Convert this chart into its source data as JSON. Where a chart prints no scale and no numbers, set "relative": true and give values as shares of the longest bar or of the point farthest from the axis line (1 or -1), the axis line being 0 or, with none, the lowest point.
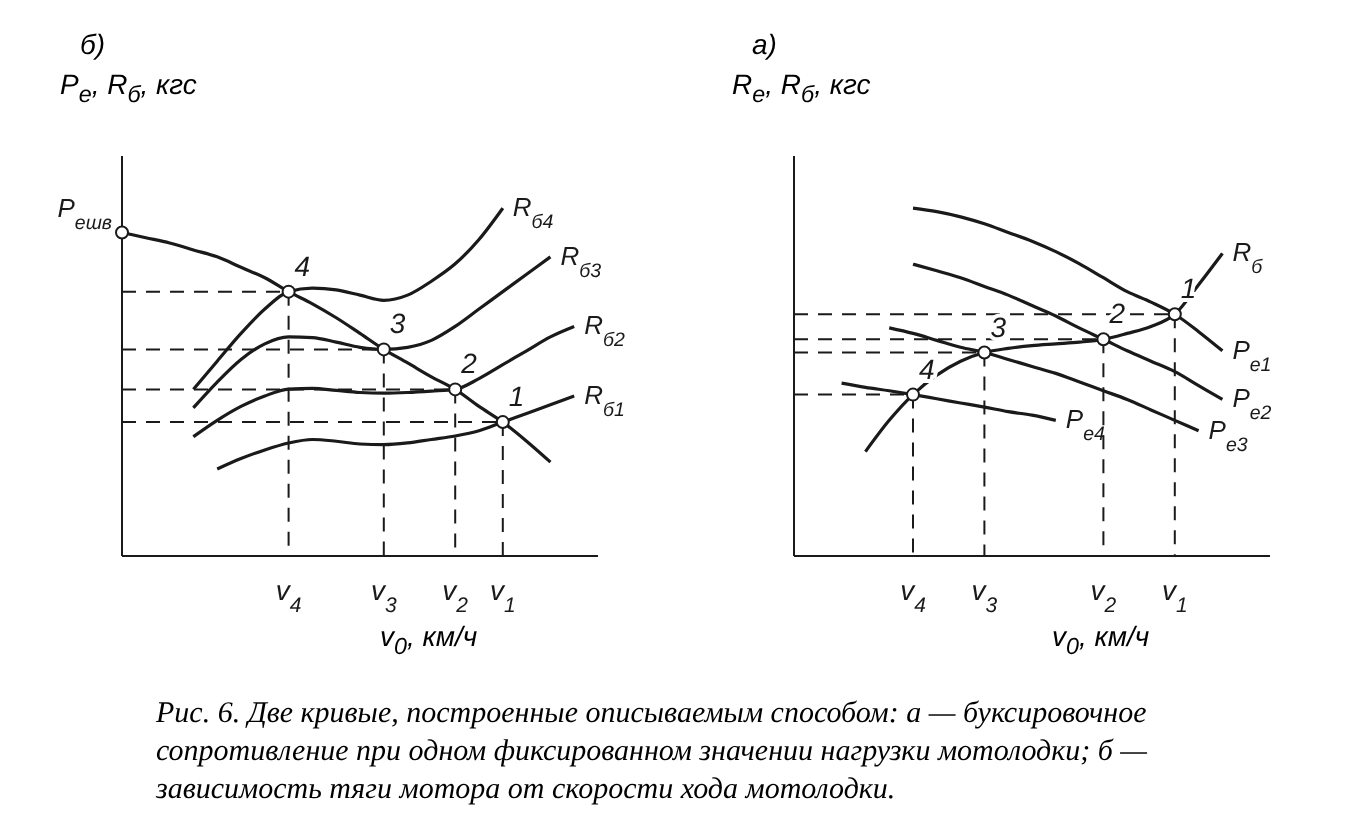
{
  "chart_data": [
    {
      "type": "line",
      "relative": true,
      "title": "б)",
      "ylabel": "P$_{e}$, R$_{б}$, кгс",
      "xlabel": "v$_{0}$, км/ч",
      "marker": "none",
      "tick_labels": "x",
      "categories": [
        null,
        null,
        null,
        null,
        null,
        null,
        null,
        "v$_{4}$",
        null,
        null,
        null,
        "v$_{3}$",
        null,
        null,
        "v$_{2}$",
        null,
        "v$_{1}$",
        null,
        null,
        null,
        null
      ],
      "series": [
        {
          "name": "P$_{eшв}$",
          "color": "#1a1a1a",
          "values": [
            0.93,
            0.915,
            0.9,
            0.88,
            0.86,
            0.83,
            0.8,
            0.76,
            0.725,
            0.685,
            0.64,
            0.594,
            0.555,
            0.515,
            0.479,
            0.43,
            0.385,
            0.33,
            0.27,
            null,
            null
          ]
        },
        {
          "name": "R$_{б4}$",
          "color": "#1a1a1a",
          "values": [
            null,
            null,
            null,
            0.479,
            0.56,
            0.64,
            0.71,
            0.76,
            0.77,
            0.765,
            0.75,
            0.735,
            0.75,
            0.79,
            0.84,
            0.91,
            1,
            null,
            null,
            null,
            null
          ]
        },
        {
          "name": "R$_{б3}$",
          "color": "#1a1a1a",
          "values": [
            null,
            null,
            null,
            0.426,
            0.5,
            0.565,
            0.61,
            0.63,
            0.628,
            0.615,
            0.6,
            0.594,
            0.6,
            0.62,
            0.66,
            0.71,
            0.76,
            0.81,
            0.86,
            null,
            null
          ]
        },
        {
          "name": "R$_{б2}$",
          "color": "#1a1a1a",
          "values": [
            null,
            null,
            null,
            0.343,
            0.39,
            0.43,
            0.46,
            0.48,
            0.482,
            0.476,
            0.47,
            0.468,
            0.47,
            0.474,
            0.479,
            0.51,
            0.55,
            0.59,
            0.63,
            0.66,
            null
          ]
        },
        {
          "name": "R$_{б1}$",
          "color": "#1a1a1a",
          "values": [
            null,
            null,
            null,
            null,
            0.25,
            0.28,
            0.305,
            0.325,
            0.335,
            0.33,
            0.322,
            0.32,
            0.325,
            0.335,
            0.345,
            0.36,
            0.385,
            0.41,
            0.435,
            0.46,
            null
          ]
        }
      ],
      "annotations": [
        {
          "text": "4",
          "x": "v$_{4}$",
          "y": 0.76
        },
        {
          "text": "3",
          "x": "v$_{3}$",
          "y": 0.594
        },
        {
          "text": "2",
          "x": "v$_{2}$",
          "y": 0.479
        },
        {
          "text": "1",
          "x": "v$_{1}$",
          "y": 0.385
        },
        "Рис. 6. Две кривые, построенные описываемым способом: а — буксировочное сопротивление при одном фиксированном значении нагрузки мотолодки; б — зависимость тяги мотора от скорости хода мотолодки."
      ]
    },
    {
      "type": "line",
      "relative": true,
      "title": "а)",
      "ylabel": "R$_{e}$, R$_{б}$, кгс",
      "xlabel": "v$_{0}$, км/ч",
      "marker": "none",
      "tick_labels": "x",
      "categories": [
        null,
        null,
        null,
        null,
        null,
        "v$_{4}$",
        null,
        null,
        "v$_{3}$",
        null,
        null,
        null,
        null,
        "v$_{2}$",
        null,
        null,
        "v$_{1}$",
        null,
        null,
        null,
        null
      ],
      "series": [
        {
          "name": "R$_{б}$",
          "color": "#1a1a1a",
          "values": [
            null,
            null,
            null,
            0.3,
            0.39,
            0.464,
            0.52,
            0.56,
            0.585,
            0.597,
            0.605,
            0.61,
            0.615,
            0.623,
            0.64,
            0.66,
            0.695,
            0.78,
            0.87,
            null,
            null
          ]
        },
        {
          "name": "P$_{e1}$",
          "color": "#1a1a1a",
          "values": [
            null,
            null,
            null,
            null,
            null,
            1,
            0.99,
            0.975,
            0.955,
            0.93,
            0.905,
            0.875,
            0.84,
            0.8,
            0.76,
            0.73,
            0.695,
            0.645,
            0.59,
            null,
            null
          ]
        },
        {
          "name": "P$_{e2}$",
          "color": "#1a1a1a",
          "values": [
            null,
            null,
            null,
            null,
            null,
            0.839,
            0.82,
            0.8,
            0.775,
            0.75,
            0.72,
            0.69,
            0.655,
            0.623,
            0.59,
            0.56,
            0.53,
            0.49,
            0.45,
            null,
            null
          ]
        },
        {
          "name": "P$_{e3}$",
          "color": "#1a1a1a",
          "values": [
            null,
            null,
            null,
            null,
            0.656,
            0.64,
            0.62,
            0.6,
            0.585,
            0.565,
            0.545,
            0.525,
            0.5,
            0.475,
            0.45,
            0.42,
            0.39,
            0.36,
            null,
            null,
            null
          ]
        },
        {
          "name": "P$_{e4}$",
          "color": "#1a1a1a",
          "values": [
            null,
            null,
            0.497,
            0.485,
            0.475,
            0.464,
            0.452,
            0.44,
            0.428,
            0.415,
            0.405,
            0.39,
            null,
            null,
            null,
            null,
            null,
            null,
            null,
            null,
            null
          ]
        }
      ],
      "annotations": [
        {
          "text": "1",
          "x": "v$_{1}$",
          "y": 0.695
        },
        {
          "text": "2",
          "x": "v$_{2}$",
          "y": 0.623
        },
        {
          "text": "3",
          "x": "v$_{3}$",
          "y": 0.585
        },
        {
          "text": "4",
          "x": "v$_{4}$",
          "y": 0.464
        }
      ]
    }
  ]
}
